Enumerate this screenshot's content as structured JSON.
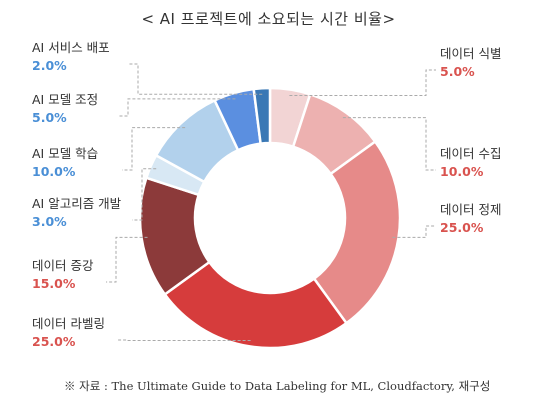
{
  "chart_data": {
    "type": "pie",
    "donut": true,
    "title": "< AI 프로젝트에 소요되는 시간 비율>",
    "slices": [
      {
        "label": "데이터 식별",
        "value": 5.0,
        "value_label": "5.0%",
        "color": "#f2d4d4",
        "label_color": "#d9534f"
      },
      {
        "label": "데이터 수집",
        "value": 10.0,
        "value_label": "10.0%",
        "color": "#edb1b0",
        "label_color": "#d9534f"
      },
      {
        "label": "데이터 정제",
        "value": 25.0,
        "value_label": "25.0%",
        "color": "#e68a89",
        "label_color": "#d9534f"
      },
      {
        "label": "데이터 라벨링",
        "value": 25.0,
        "value_label": "25.0%",
        "color": "#d63c3c",
        "label_color": "#d9534f"
      },
      {
        "label": "데이터 증강",
        "value": 15.0,
        "value_label": "15.0%",
        "color": "#8c3a3a",
        "label_color": "#d9534f"
      },
      {
        "label": "AI 알고리즘 개발",
        "value": 3.0,
        "value_label": "3.0%",
        "color": "#d8e8f4",
        "label_color": "#4a8fd6"
      },
      {
        "label": "AI 모델 학습",
        "value": 10.0,
        "value_label": "10.0%",
        "color": "#b2d1ec",
        "label_color": "#4a8fd6"
      },
      {
        "label": "AI 모델 조정",
        "value": 5.0,
        "value_label": "5.0%",
        "color": "#5b8fe0",
        "label_color": "#4a8fd6"
      },
      {
        "label": "AI 서비스 배포",
        "value": 2.0,
        "value_label": "2.0%",
        "color": "#3a78b5",
        "label_color": "#4a8fd6"
      }
    ]
  },
  "source": "※ 자료 : The Ultimate Guide to Data Labeling for ML, Cloudfactory, 재구성"
}
